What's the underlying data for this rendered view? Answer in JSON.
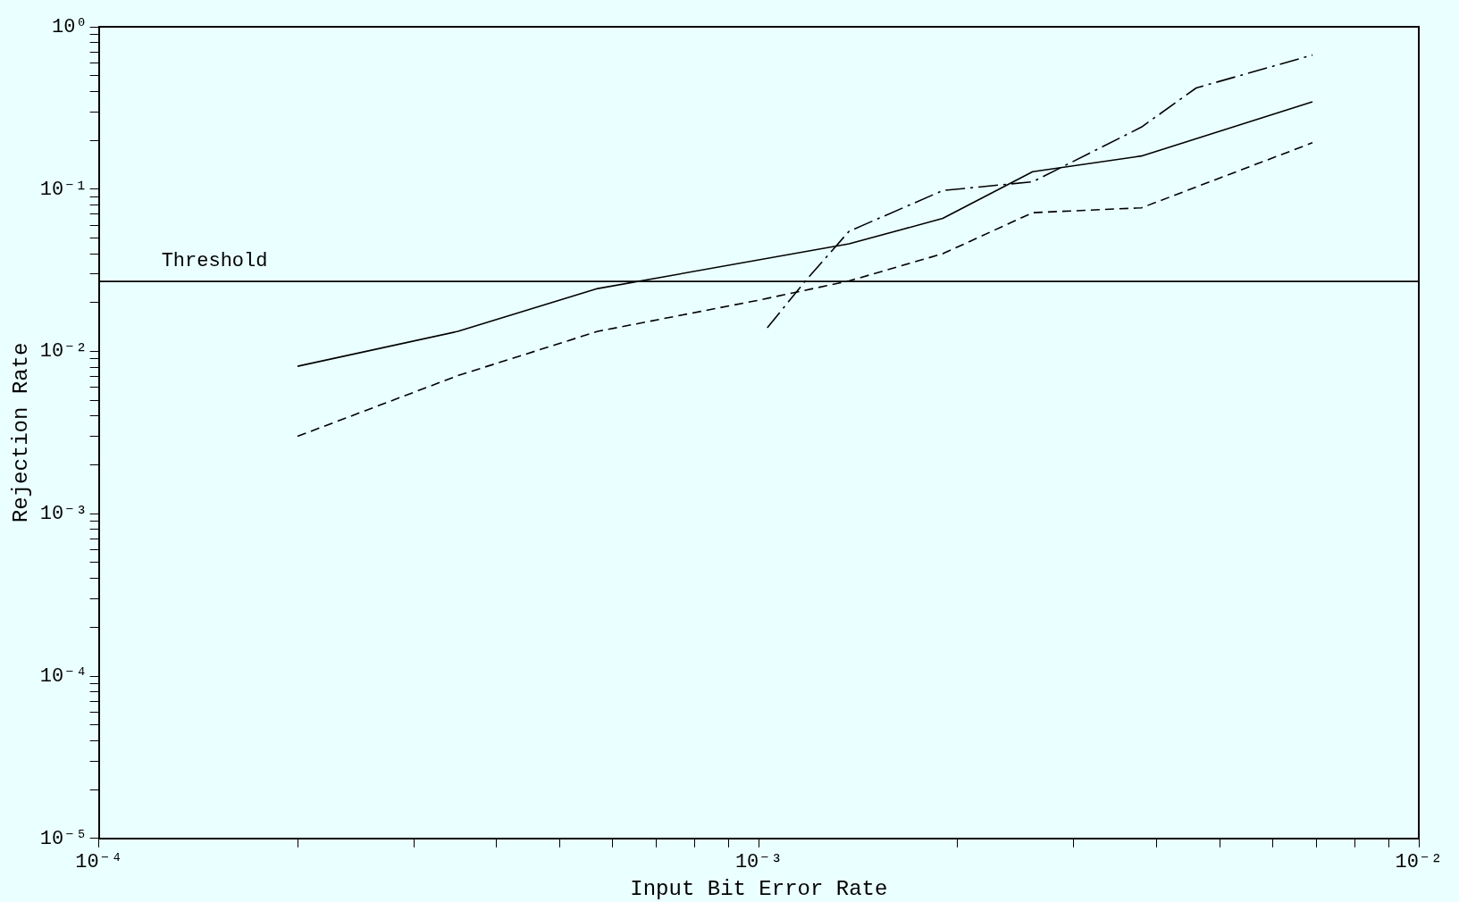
{
  "chart_data": {
    "type": "line",
    "xlabel": "Input Bit Error Rate",
    "ylabel": "Rejection Rate",
    "log": "xy",
    "grid": false,
    "legend": false,
    "marker": "none",
    "xlim": [
      0.0001,
      0.01
    ],
    "ylim": [
      1e-05,
      1
    ],
    "xticks": [
      {
        "value": 0.0001,
        "label": "10⁻⁴"
      },
      {
        "value": 0.0002,
        "label": null
      },
      {
        "value": 0.0003,
        "label": null
      },
      {
        "value": 0.0004,
        "label": null
      },
      {
        "value": 0.0005,
        "label": null
      },
      {
        "value": 0.0006,
        "label": null
      },
      {
        "value": 0.0007,
        "label": null
      },
      {
        "value": 0.0008,
        "label": null
      },
      {
        "value": 0.0009,
        "label": null
      },
      {
        "value": 0.001,
        "label": "10⁻³"
      },
      {
        "value": 0.002,
        "label": null
      },
      {
        "value": 0.003,
        "label": null
      },
      {
        "value": 0.004,
        "label": null
      },
      {
        "value": 0.005,
        "label": null
      },
      {
        "value": 0.006,
        "label": null
      },
      {
        "value": 0.007,
        "label": null
      },
      {
        "value": 0.008,
        "label": null
      },
      {
        "value": 0.009,
        "label": null
      },
      {
        "value": 0.01,
        "label": "10⁻²"
      }
    ],
    "yticks": [
      {
        "value": 1e-05,
        "label": "10⁻⁵"
      },
      {
        "value": 2e-05,
        "label": null
      },
      {
        "value": 3e-05,
        "label": null
      },
      {
        "value": 4e-05,
        "label": null
      },
      {
        "value": 5e-05,
        "label": null
      },
      {
        "value": 6e-05,
        "label": null
      },
      {
        "value": 7e-05,
        "label": null
      },
      {
        "value": 8e-05,
        "label": null
      },
      {
        "value": 9e-05,
        "label": null
      },
      {
        "value": 0.0001,
        "label": "10⁻⁴"
      },
      {
        "value": 0.0002,
        "label": null
      },
      {
        "value": 0.0003,
        "label": null
      },
      {
        "value": 0.0004,
        "label": null
      },
      {
        "value": 0.0005,
        "label": null
      },
      {
        "value": 0.0006,
        "label": null
      },
      {
        "value": 0.0007,
        "label": null
      },
      {
        "value": 0.0008,
        "label": null
      },
      {
        "value": 0.0009,
        "label": null
      },
      {
        "value": 0.001,
        "label": "10⁻³"
      },
      {
        "value": 0.002,
        "label": null
      },
      {
        "value": 0.003,
        "label": null
      },
      {
        "value": 0.004,
        "label": null
      },
      {
        "value": 0.005,
        "label": null
      },
      {
        "value": 0.006,
        "label": null
      },
      {
        "value": 0.007,
        "label": null
      },
      {
        "value": 0.008,
        "label": null
      },
      {
        "value": 0.009,
        "label": null
      },
      {
        "value": 0.01,
        "label": "10⁻²"
      },
      {
        "value": 0.02,
        "label": null
      },
      {
        "value": 0.03,
        "label": null
      },
      {
        "value": 0.04,
        "label": null
      },
      {
        "value": 0.05,
        "label": null
      },
      {
        "value": 0.06,
        "label": null
      },
      {
        "value": 0.07,
        "label": null
      },
      {
        "value": 0.08,
        "label": null
      },
      {
        "value": 0.09,
        "label": null
      },
      {
        "value": 0.1,
        "label": "10⁻¹"
      },
      {
        "value": 0.2,
        "label": null
      },
      {
        "value": 0.3,
        "label": null
      },
      {
        "value": 0.4,
        "label": null
      },
      {
        "value": 0.5,
        "label": null
      },
      {
        "value": 0.6,
        "label": null
      },
      {
        "value": 0.7,
        "label": null
      },
      {
        "value": 0.8,
        "label": null
      },
      {
        "value": 0.9,
        "label": null
      },
      {
        "value": 1,
        "label": "10⁰"
      }
    ],
    "series": [
      {
        "color": "#000000",
        "line_style": "solid",
        "x": [
          0.0002,
          0.00035,
          0.00057,
          0.00137,
          0.0019,
          0.0026,
          0.0038,
          0.0069
        ],
        "values": [
          0.0081,
          0.0133,
          0.0244,
          0.046,
          0.066,
          0.128,
          0.16,
          0.345
        ]
      },
      {
        "color": "#000000",
        "line_style": "dashed",
        "x": [
          0.0002,
          0.00035,
          0.00057,
          0.001,
          0.00137,
          0.0019,
          0.0026,
          0.0038,
          0.0069
        ],
        "values": [
          0.003,
          0.0071,
          0.0133,
          0.0207,
          0.0272,
          0.04,
          0.0716,
          0.0767,
          0.193
        ]
      },
      {
        "color": "#000000",
        "line_style": "dashdot",
        "x": [
          0.00103,
          0.00118,
          0.00137,
          0.0019,
          0.0026,
          0.0038,
          0.0046,
          0.0069
        ],
        "values": [
          0.014,
          0.0276,
          0.055,
          0.098,
          0.111,
          0.241,
          0.42,
          0.67
        ]
      }
    ],
    "ref_lines": [
      {
        "axis": "y",
        "value": 0.027,
        "label": "Threshold",
        "color": "#000000",
        "line_style": "solid"
      }
    ]
  }
}
